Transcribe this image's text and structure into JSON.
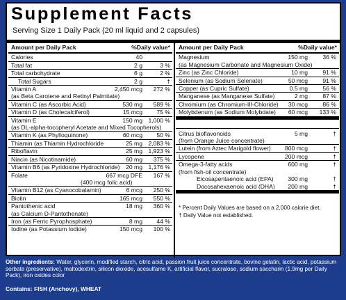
{
  "title": "Supplement Facts",
  "serving": "Serving Size 1 Daily Pack  (20 ml liquid and 2 capsules)",
  "left": {
    "header_amount": "Amount per Daily Pack",
    "header_dv": "%Daily value*",
    "rows": [
      {
        "name": "Calories",
        "amount": "40",
        "dv": ""
      },
      {
        "name": "Total fat",
        "amount": "2 g",
        "dv": "3 %"
      },
      {
        "name": "Total carbohydrate",
        "amount": "6 g",
        "dv": "2 %"
      },
      {
        "name": "Total Sugars",
        "amount": "2 g",
        "dv": "†"
      },
      {
        "name": "Vitamin A",
        "amount": "2,450 mcg",
        "dv": "272 %"
      },
      {
        "name": "(as Beta Carotene and Retinyl Palmitate)",
        "amount": "",
        "dv": ""
      },
      {
        "name": "Vitamin C (as Ascorbic Acid)",
        "amount": "530 mg",
        "dv": "589 %"
      },
      {
        "name": "Vitamin D (as Cholecalciferol)",
        "amount": "15 mcg",
        "dv": "75 %"
      },
      {
        "name": "Vitamin E",
        "amount": "150 mg",
        "dv": "1,000 %"
      },
      {
        "name": "(as DL-alpha-tocopheryl Acetate and Mixed Tocopherols)",
        "amount": "",
        "dv": ""
      },
      {
        "name": "Vitamin K (as Phylloquinone)",
        "amount": "60 mcg",
        "dv": "50 %"
      },
      {
        "name": "Thiamin (as Thiamin Hydrochloride",
        "amount": "25 mg",
        "dv": "2,083 %"
      },
      {
        "name": "Riboflavin",
        "amount": "25 mg",
        "dv": "1,923 %"
      },
      {
        "name": "Niacin (as Nicotinamide)",
        "amount": "60 mg",
        "dv": "375 %"
      },
      {
        "name": "Vitamin B6 (as Pyridoxine Hydrochloride)",
        "amount": "20 mg",
        "dv": "1,176 %"
      },
      {
        "name": "Folate",
        "amount": "667 mcg DFE",
        "dv": "167 %"
      },
      {
        "name": "(400 mcg folic acid)",
        "amount": "",
        "dv": ""
      },
      {
        "name": "Vitamin B12 (as Cyanocobalamin)",
        "amount": "6 mcg",
        "dv": "250 %"
      },
      {
        "name": "Biotin",
        "amount": "165 mcg",
        "dv": "550 %"
      },
      {
        "name": "Pantothenic acid",
        "amount": "18 mg",
        "dv": "360 %"
      },
      {
        "name": "(as Calcium D-Pantothenate)",
        "amount": "",
        "dv": ""
      },
      {
        "name": "Iron (as Ferric Pyrophosphate)",
        "amount": "8 mg",
        "dv": "44 %"
      },
      {
        "name": "Iodine (as Potassium Iodide)",
        "amount": "150 mcg",
        "dv": "100 %"
      }
    ]
  },
  "right": {
    "header_amount": "Amount per Daily Pack",
    "header_dv": "%Daily value*",
    "rows": [
      {
        "name": "Magnesium",
        "amount": "150 mg",
        "dv": "36 %"
      },
      {
        "name": "(as Magnesium Carbonate and Magnesium Oxide)",
        "amount": "",
        "dv": ""
      },
      {
        "name": "Zinc (as Zinc Chloride)",
        "amount": "10 mg",
        "dv": "91 %"
      },
      {
        "name": "Selenium (as Sodium Selenate)",
        "amount": "50 mcg",
        "dv": "91 %"
      },
      {
        "name": "Copper (as Cupric Sulfate)",
        "amount": "0.5 mg",
        "dv": "56 %"
      },
      {
        "name": "Manganese (as Manganese Sulfate)",
        "amount": "2 mg",
        "dv": "87 %"
      },
      {
        "name": "Chromium (as Chromium-III-Chloride)",
        "amount": "30 mcg",
        "dv": "86 %"
      },
      {
        "name": "Molybdenum (as Sodium Molybdate)",
        "amount": "60 mcg",
        "dv": "133 %"
      },
      {
        "name": "Citrus bioflavonoids",
        "amount": "5 mg",
        "dv": "†"
      },
      {
        "name": "(from Orange Juice concentrate)",
        "amount": "",
        "dv": ""
      },
      {
        "name": "Lutein (from Aztec Marigold flower)",
        "amount": "800 mcg",
        "dv": "†"
      },
      {
        "name": "Lycopene",
        "amount": "200 mcg",
        "dv": "†"
      },
      {
        "name": "Omega-3-fatty acids",
        "amount": "600 mg",
        "dv": "†"
      },
      {
        "name": "(from fish-oil concentrate)",
        "amount": "",
        "dv": ""
      },
      {
        "name": "Eicosapentaenoic acid (EPA)",
        "amount": "300 mg",
        "dv": "†"
      },
      {
        "name": "Docosahexaenoic acid (DHA)",
        "amount": "200 mg",
        "dv": "†"
      }
    ],
    "footnote_1": "*   Percent Daily Values are based on a 2,000 calorie diet.",
    "footnote_2": "†   Daily Value not established."
  },
  "other_ingredients_label": "Other ingredients:",
  "other_ingredients": "Water, glycerin, modified starch, citric acid, passion fruit juice concentrate, bovine gelatin, lactic acid, potassium sorbate (preservative), maltodextrin, silicon dioxide, acesulfame K, artificial flavor, sucralose, sodium saccharin (1.9mg per Daily Pack), iron oxides color",
  "contains_label": "Contains:",
  "contains_value": "FISH (Anchovy), WHEAT",
  "colors": {
    "background": "#1d3d8c",
    "panel": "#ffffff"
  }
}
